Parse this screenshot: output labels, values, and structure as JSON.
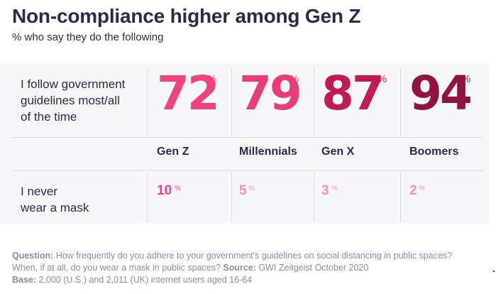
{
  "title": "Non-compliance higher among Gen Z",
  "subtitle": "% who say they do the following",
  "chart_data": {
    "type": "table",
    "title": "Non-compliance higher among Gen Z",
    "subtitle": "% who say they do the following",
    "unit": "%",
    "categories": [
      "Gen Z",
      "Millennials",
      "Gen X",
      "Boomers"
    ],
    "series": [
      {
        "name": "I follow government guidelines most/all of the time",
        "label_lines": [
          "I follow government",
          "guidelines most/all",
          "of the time"
        ],
        "values": [
          72,
          79,
          87,
          94
        ],
        "colors": [
          "#f0437e",
          "#e93d7b",
          "#c01a57",
          "#8f1440"
        ]
      },
      {
        "name": "I never wear a mask",
        "label_lines": [
          "I never",
          "wear a mask"
        ],
        "values": [
          10,
          5,
          3,
          2
        ],
        "colors": [
          "#f0437e",
          "#f28fb2",
          "#f28fb2",
          "#f28fb2"
        ]
      }
    ]
  },
  "footnote": {
    "question_label": "Question:",
    "question_text": " How frequently do you adhere to your government's guidelines on social distancing in public spaces? When, if at all, do you wear a mask in public spaces?",
    "source_label": " Source:",
    "source_text": " GWI Zeitgeist October 2020",
    "base_label": "Base:",
    "base_text": " 2,000 (U.S.) and 2,011 (UK) internet users aged 16-64"
  }
}
